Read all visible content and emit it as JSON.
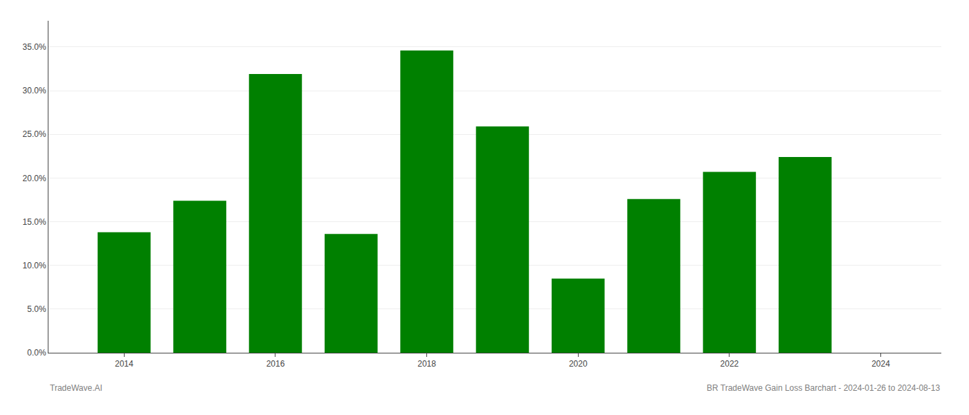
{
  "chart_data": {
    "type": "bar",
    "x": [
      2014,
      2015,
      2016,
      2017,
      2018,
      2019,
      2020,
      2021,
      2022,
      2023
    ],
    "values": [
      0.138,
      0.174,
      0.319,
      0.136,
      0.346,
      0.259,
      0.085,
      0.176,
      0.207,
      0.224
    ],
    "color": "#008000",
    "xlim": [
      2013.0,
      2024.8
    ],
    "xticks": [
      2014,
      2016,
      2018,
      2020,
      2022,
      2024
    ],
    "ylim": [
      0,
      0.38
    ],
    "yticks": [
      {
        "value": 0.0,
        "label": "0.0%"
      },
      {
        "value": 0.05,
        "label": "5.0%"
      },
      {
        "value": 0.1,
        "label": "10.0%"
      },
      {
        "value": 0.15,
        "label": "15.0%"
      },
      {
        "value": 0.2,
        "label": "20.0%"
      },
      {
        "value": 0.25,
        "label": "25.0%"
      },
      {
        "value": 0.3,
        "label": "30.0%"
      },
      {
        "value": 0.35,
        "label": "35.0%"
      }
    ],
    "grid": "y",
    "annotations": [
      "TradeWave.AI",
      "BR TradeWave Gain Loss Barchart - 2024-01-26 to 2024-08-13"
    ]
  }
}
